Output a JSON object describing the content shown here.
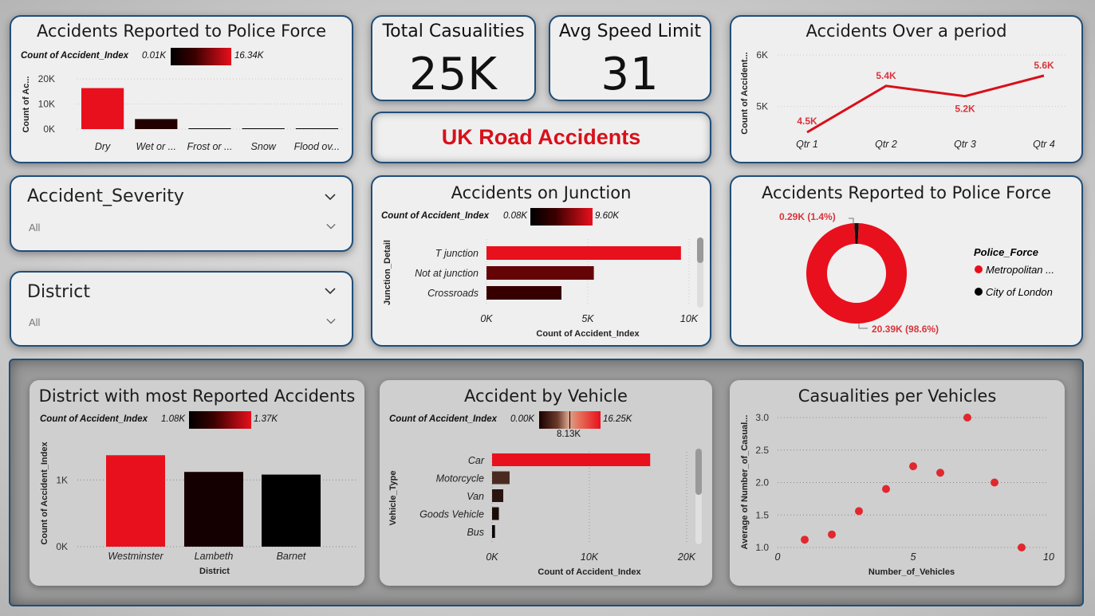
{
  "cards": {
    "police_bar": {
      "title": "Accidents Reported to Police Force",
      "legend_label": "Count of Accident_Index",
      "legend_min": "0.01K",
      "legend_max": "16.34K",
      "ylabel": "Count of Ac...",
      "yticks": [
        "20K",
        "10K",
        "0K"
      ]
    },
    "total_casualties": {
      "title": "Total Casualities",
      "value": "25K"
    },
    "avg_speed": {
      "title": "Avg Speed Limit",
      "value": "31"
    },
    "banner": {
      "title": "UK Road Accidents"
    },
    "over_period": {
      "title": "Accidents Over a period",
      "ylabel": "Count of Accident...",
      "yticks": [
        "6K",
        "5K"
      ]
    },
    "severity_slicer": {
      "label": "Accident_Severity",
      "value": "All"
    },
    "district_slicer": {
      "label": "District",
      "value": "All"
    },
    "junction": {
      "title": "Accidents on Junction",
      "legend_label": "Count of Accident_Index",
      "legend_min": "0.08K",
      "legend_max": "9.60K",
      "ylabel": "Junction_Detail",
      "xlabel": "Count of Accident_Index",
      "xticks": [
        "0K",
        "5K",
        "10K"
      ]
    },
    "police_donut": {
      "title": "Accidents Reported to Police Force",
      "legend_title": "Police_Force",
      "small_label": "0.29K (1.4%)",
      "large_label": "20.39K (98.6%)"
    },
    "district_most": {
      "title": "District with most Reported Accidents",
      "legend_label": "Count of Accident_Index",
      "legend_min": "1.08K",
      "legend_max": "1.37K",
      "ylabel": "Count of Accident_Index",
      "xlabel": "District",
      "yticks": [
        "1K",
        "0K"
      ]
    },
    "vehicle": {
      "title": "Accident by Vehicle",
      "legend_label": "Count of Accident_Index",
      "legend_min": "0.00K",
      "legend_mid": "8.13K",
      "legend_max": "16.25K",
      "ylabel": "Vehicle_Type",
      "xlabel": "Count of Accident_Index",
      "xticks": [
        "0K",
        "10K",
        "20K"
      ]
    },
    "casualties_scatter": {
      "title": "Casualities per Vehicles",
      "ylabel": "Average of Number_of_Casual...",
      "xlabel": "Number_of_Vehicles",
      "yticks": [
        "3.0",
        "2.5",
        "2.0",
        "1.5",
        "1.0"
      ],
      "xticks": [
        "0",
        "5",
        "10"
      ]
    }
  },
  "colors": {
    "accent_red": "#e8101c",
    "border_blue": "#1f4e79",
    "dark": "#000000"
  },
  "chart_data": [
    {
      "type": "bar",
      "title": "Accidents Reported to Police Force",
      "categories": [
        "Dry",
        "Wet or ...",
        "Frost or ...",
        "Snow",
        "Flood ov..."
      ],
      "values": [
        16340,
        4000,
        60,
        20,
        10
      ],
      "ylabel": "Count of Ac...",
      "ylim": [
        0,
        20000
      ]
    },
    {
      "type": "line",
      "title": "Accidents Over a period",
      "categories": [
        "Qtr 1",
        "Qtr 2",
        "Qtr 3",
        "Qtr 4"
      ],
      "values": [
        4500,
        5400,
        5200,
        5600
      ],
      "labels": [
        "4.5K",
        "5.4K",
        "5.2K",
        "5.6K"
      ],
      "ylim": [
        4500,
        6000
      ]
    },
    {
      "type": "bar",
      "title": "Accidents on Junction",
      "categories": [
        "T junction",
        "Not at junction",
        "Crossroads"
      ],
      "values": [
        9600,
        5300,
        3700
      ],
      "xlim": [
        0,
        10000
      ]
    },
    {
      "type": "pie",
      "title": "Accidents Reported to Police Force",
      "categories": [
        "Metropolitan ...",
        "City of London"
      ],
      "values": [
        20390,
        290
      ]
    },
    {
      "type": "bar",
      "title": "District with most Reported Accidents",
      "categories": [
        "Westminster",
        "Lambeth",
        "Barnet"
      ],
      "values": [
        1370,
        1120,
        1080
      ],
      "ylim": [
        0,
        1600
      ]
    },
    {
      "type": "bar",
      "title": "Accident by Vehicle",
      "categories": [
        "Car",
        "Motorcycle",
        "Van",
        "Goods Vehicle",
        "Bus"
      ],
      "values": [
        16250,
        1800,
        1150,
        700,
        300
      ],
      "xlim": [
        0,
        20000
      ]
    },
    {
      "type": "scatter",
      "title": "Casualities per Vehicles",
      "x": [
        1,
        2,
        3,
        4,
        5,
        6,
        7,
        8,
        9
      ],
      "y": [
        1.12,
        1.2,
        1.56,
        1.9,
        2.25,
        2.15,
        3.0,
        2.0,
        1.0
      ],
      "xlabel": "Number_of_Vehicles",
      "xlim": [
        0,
        10
      ],
      "ylim": [
        1.0,
        3.0
      ]
    }
  ]
}
